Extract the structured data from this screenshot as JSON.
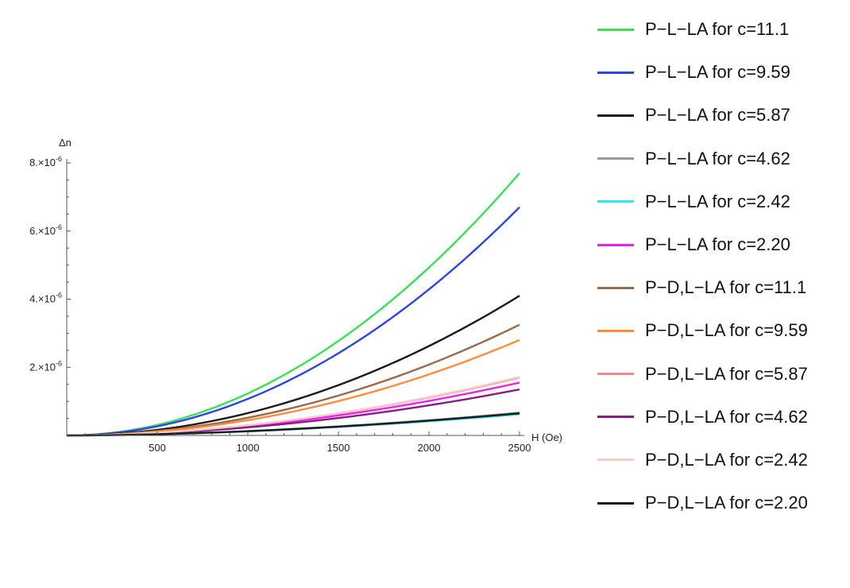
{
  "chart_data": {
    "type": "line",
    "title": "",
    "xlabel": "H (Oe)",
    "ylabel": "Δn",
    "xlim": [
      0,
      2500
    ],
    "ylim": [
      0,
      8e-06
    ],
    "x_ticks": [
      500,
      1000,
      1500,
      2000,
      2500
    ],
    "x_tick_labels": [
      "500",
      "1000",
      "1500",
      "2000",
      "2500"
    ],
    "y_ticks": [
      2e-06,
      4e-06,
      6e-06,
      8e-06
    ],
    "y_tick_labels": [
      {
        "mant": "2.",
        "exp": "-6"
      },
      {
        "mant": "4.",
        "exp": "-6"
      },
      {
        "mant": "6.",
        "exp": "-6"
      },
      {
        "mant": "8.",
        "exp": "-6"
      }
    ],
    "legend_position": "right",
    "curve_model": "y = end_value * (H/2500)^exponent",
    "series": [
      {
        "name": "P−L−LA for c=11.1",
        "color": "#39e055",
        "end_value": 7.7e-06,
        "exponent": 2.0
      },
      {
        "name": "P−L−LA for c=9.59",
        "color": "#2c44e0",
        "end_value": 6.7e-06,
        "exponent": 2.0
      },
      {
        "name": "P−L−LA for c=5.87",
        "color": "#1a1a1a",
        "end_value": 4.1e-06,
        "exponent": 2.0
      },
      {
        "name": "P−L−LA for c=4.62",
        "color": "#9a9a9a",
        "end_value": 6.7e-07,
        "exponent": 1.8
      },
      {
        "name": "P−L−LA for c=2.42",
        "color": "#2ee6f0",
        "end_value": 6.2e-07,
        "exponent": 1.8
      },
      {
        "name": "P−L−LA for c=2.20",
        "color": "#ee20ee",
        "end_value": 1.55e-06,
        "exponent": 1.9
      },
      {
        "name": "P−D,L−LA for c=11.1",
        "color": "#9a6a4a",
        "end_value": 3.25e-06,
        "exponent": 2.0
      },
      {
        "name": "P−D,L−LA for c=9.59",
        "color": "#ff8c3a",
        "end_value": 2.8e-06,
        "exponent": 2.0
      },
      {
        "name": "P−D,L−LA for c=5.87",
        "color": "#f08a8a",
        "end_value": 1.7e-06,
        "exponent": 1.9
      },
      {
        "name": "P−D,L−LA for c=4.62",
        "color": "#8a1a8a",
        "end_value": 1.35e-06,
        "exponent": 1.9
      },
      {
        "name": "P−D,L−LA for c=2.42",
        "color": "#f3cccc",
        "end_value": 1.72e-06,
        "exponent": 1.9
      },
      {
        "name": "P−D,L−LA for c=2.20",
        "color": "#1a1a1a",
        "end_value": 6.5e-07,
        "exponent": 1.8
      }
    ]
  }
}
